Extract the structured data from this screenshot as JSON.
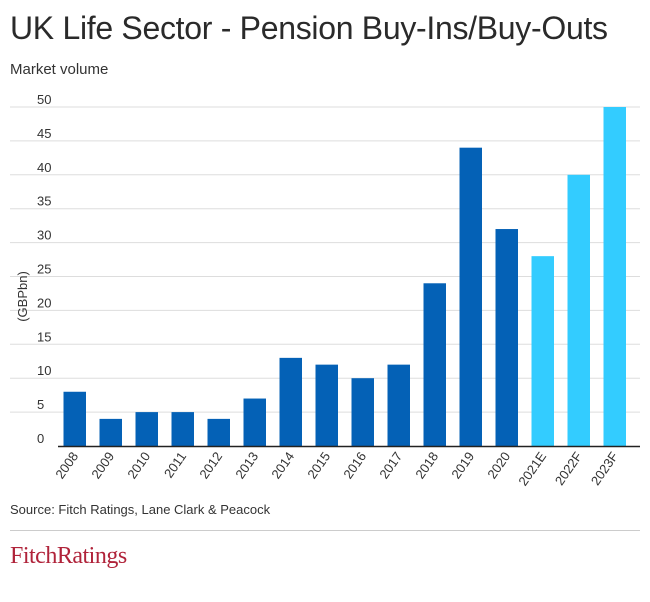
{
  "header": {
    "title": "UK Life Sector - Pension Buy-Ins/Buy-Outs",
    "subtitle": "Market volume"
  },
  "footer": {
    "source": "Source: Fitch Ratings, Lane Clark & Peacock",
    "logo_text": "FitchRatings"
  },
  "chart_data": {
    "type": "bar",
    "title": "UK Life Sector - Pension Buy-Ins/Buy-Outs",
    "subtitle": "Market volume",
    "xlabel": "",
    "ylabel": "(GBPbn)",
    "ylim": [
      0,
      50
    ],
    "yticks": [
      0,
      5,
      10,
      15,
      20,
      25,
      30,
      35,
      40,
      45,
      50
    ],
    "grid": true,
    "categories": [
      "2008",
      "2009",
      "2010",
      "2011",
      "2012",
      "2013",
      "2014",
      "2015",
      "2016",
      "2017",
      "2018",
      "2019",
      "2020",
      "2021E",
      "2022F",
      "2023F"
    ],
    "values": [
      8,
      4,
      5,
      5,
      4,
      7,
      13,
      12,
      10,
      12,
      24,
      44,
      32,
      28,
      40,
      50
    ],
    "colors": {
      "actual": "#0461b6",
      "estimate_forecast": "#33ccff",
      "grid": "#dddddd",
      "axis": "#222222"
    },
    "bar_color_by_category": [
      "actual",
      "actual",
      "actual",
      "actual",
      "actual",
      "actual",
      "actual",
      "actual",
      "actual",
      "actual",
      "actual",
      "actual",
      "actual",
      "estimate_forecast",
      "estimate_forecast",
      "estimate_forecast"
    ]
  }
}
